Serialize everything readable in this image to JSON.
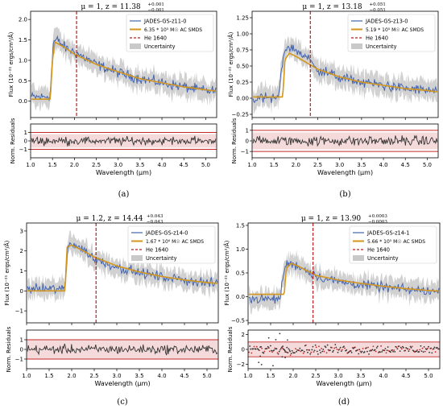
{
  "colors": {
    "data": "#4464ad",
    "model": "#d4961c",
    "he": "#b22222",
    "band": "#c9c9c9",
    "resid_band": "#f4dada",
    "resid_line": "#c62828"
  },
  "chart_data": [
    {
      "type": "line",
      "panel_label": "(a)",
      "title": "μ = 1, z = 11.38^{+0.001}_{-0.001}",
      "title_main": "μ = 1, z = 11.38",
      "title_sup": "+0.001",
      "title_sub": "−0.001",
      "xlabel": "Wavelength (μm)",
      "ylabel": "Flux (10⁻²¹ ergs/cm²/Å)",
      "ylabel_resid": "Norm. Residuals",
      "xlim": [
        1.0,
        5.25
      ],
      "ylim": [
        -0.4,
        2.2
      ],
      "resid_ylim": [
        -2,
        2
      ],
      "xticks": [
        "1.0",
        "1.5",
        "2.0",
        "2.5",
        "3.0",
        "3.5",
        "4.0",
        "4.5",
        "5.0"
      ],
      "yticks": [
        "0.0",
        "0.5",
        "1.0",
        "1.5",
        "2.0"
      ],
      "resid_yticks": [
        "−1",
        "0",
        "1"
      ],
      "he_x": 2.05,
      "legend": [
        "JADES-GS-z11-0",
        "6.35 * 10⁵ M☉ AC SMDS",
        "He 1640",
        "Uncertainty"
      ],
      "series": [
        {
          "name": "JADES-GS-z11-0",
          "x": [
            1.0,
            1.3,
            1.45,
            1.52,
            1.6,
            1.8,
            2.0,
            2.5,
            3.0,
            3.5,
            4.0,
            4.5,
            5.0,
            5.2
          ],
          "values": [
            0.1,
            0.1,
            0.15,
            1.45,
            1.5,
            1.3,
            1.2,
            0.9,
            0.7,
            0.55,
            0.45,
            0.35,
            0.25,
            0.25
          ]
        },
        {
          "name": "6.35 * 10⁵ M☉ AC SMDS",
          "x": [
            1.0,
            1.45,
            1.5,
            1.55,
            1.8,
            2.0,
            2.5,
            3.0,
            3.5,
            4.0,
            4.5,
            5.0,
            5.2
          ],
          "values": [
            0.05,
            0.05,
            1.0,
            1.45,
            1.3,
            1.15,
            0.9,
            0.72,
            0.55,
            0.45,
            0.35,
            0.28,
            0.25
          ]
        }
      ],
      "residual_style": "line",
      "resid_band": [
        -0.8,
        0.8
      ],
      "band_lines": [
        -1,
        1
      ]
    },
    {
      "type": "line",
      "panel_label": "(b)",
      "title": "μ = 1, z = 13.18^{+0.051}_{-0.051}",
      "title_main": "μ = 1, z = 13.18",
      "title_sup": "+0.051",
      "title_sub": "−0.051",
      "xlabel": "Wavelength (μm)",
      "ylabel": "Flux (10⁻²¹ ergs/cm²/Å)",
      "ylabel_resid": "Norm. Residuals",
      "xlim": [
        1.0,
        5.25
      ],
      "ylim": [
        -0.3,
        1.35
      ],
      "resid_ylim": [
        -1.6,
        1.6
      ],
      "xticks": [
        "1.0",
        "1.5",
        "2.0",
        "2.5",
        "3.0",
        "3.5",
        "4.0",
        "4.5",
        "5.0"
      ],
      "yticks": [
        "−0.25",
        "0.00",
        "0.25",
        "0.50",
        "0.75",
        "1.00",
        "1.25"
      ],
      "resid_yticks": [
        "−1",
        "0",
        "1"
      ],
      "he_x": 2.33,
      "legend": [
        "JADES-GS-z13-0",
        "5.19 * 10⁵ M☉ AC SMDS",
        "He 1640",
        "Uncertainty"
      ],
      "series": [
        {
          "name": "JADES-GS-z13-0",
          "x": [
            1.0,
            1.6,
            1.72,
            1.8,
            2.0,
            2.3,
            2.5,
            3.0,
            3.5,
            4.0,
            4.5,
            5.0,
            5.2
          ],
          "values": [
            0.0,
            0.0,
            0.7,
            0.8,
            0.75,
            0.6,
            0.45,
            0.32,
            0.25,
            0.2,
            0.15,
            0.12,
            0.1
          ]
        },
        {
          "name": "5.19 * 10⁵ M☉ AC SMDS",
          "x": [
            1.0,
            1.7,
            1.75,
            1.85,
            2.0,
            2.5,
            3.0,
            3.5,
            4.0,
            4.5,
            5.0,
            5.2
          ],
          "values": [
            0.02,
            0.02,
            0.6,
            0.7,
            0.65,
            0.45,
            0.33,
            0.25,
            0.2,
            0.15,
            0.12,
            0.1
          ]
        }
      ],
      "residual_style": "line",
      "resid_band": [
        -0.8,
        0.8
      ],
      "band_lines": [
        -1,
        1
      ]
    },
    {
      "type": "line",
      "panel_label": "(c)",
      "title": "μ = 1.2, z = 14.44^{+0.043}_{-0.043}",
      "title_main": "μ = 1.2, z = 14.44",
      "title_sup": "+0.043",
      "title_sub": "−0.043",
      "xlabel": "Wavelength (μm)",
      "ylabel": "Flux (10⁻²¹ ergs/cm²/Å)",
      "ylabel_resid": "Norm. Residuals",
      "xlim": [
        1.0,
        5.25
      ],
      "ylim": [
        -1.6,
        3.4
      ],
      "resid_ylim": [
        -2,
        2
      ],
      "xticks": [
        "1.0",
        "1.5",
        "2.0",
        "2.5",
        "3.0",
        "3.5",
        "4.0",
        "4.5",
        "5.0"
      ],
      "yticks": [
        "−1",
        "0",
        "1",
        "2",
        "3"
      ],
      "resid_yticks": [
        "−1",
        "0",
        "1"
      ],
      "he_x": 2.54,
      "legend": [
        "JADES-GS-z14-0",
        "1.67 * 10⁶ M☉ AC SMDS",
        "He 1640",
        "Uncertainty"
      ],
      "series": [
        {
          "name": "JADES-GS-z14-0",
          "x": [
            1.0,
            1.5,
            1.85,
            1.92,
            2.0,
            2.3,
            2.5,
            3.0,
            3.5,
            4.0,
            4.5,
            5.0,
            5.2
          ],
          "values": [
            0.1,
            0.1,
            0.1,
            2.3,
            2.4,
            2.0,
            1.6,
            1.2,
            0.9,
            0.7,
            0.55,
            0.4,
            0.35
          ]
        },
        {
          "name": "1.67 * 10⁶ M☉ AC SMDS",
          "x": [
            1.0,
            1.85,
            1.9,
            2.0,
            2.3,
            2.5,
            3.0,
            3.5,
            4.0,
            4.5,
            5.0,
            5.2
          ],
          "values": [
            0.0,
            0.0,
            2.2,
            2.3,
            1.95,
            1.7,
            1.25,
            0.95,
            0.72,
            0.55,
            0.42,
            0.38
          ]
        }
      ],
      "residual_style": "line",
      "resid_band": [
        -1,
        1
      ],
      "band_lines": [
        -1,
        1
      ]
    },
    {
      "type": "line",
      "panel_label": "(d)",
      "title": "μ = 1, z = 13.90^{+0.0003}_{-0.0003}",
      "title_main": "μ = 1, z = 13.90",
      "title_sup": "+0.0003",
      "title_sub": "−0.0003",
      "xlabel": "Wavelength (μm)",
      "ylabel": "Flux (10⁻²¹ ergs/cm²/Å)",
      "ylabel_resid": "Norm. Residuals",
      "xlim": [
        1.0,
        5.25
      ],
      "ylim": [
        -0.55,
        1.55
      ],
      "resid_ylim": [
        -2.6,
        2.6
      ],
      "xticks": [
        "1.0",
        "1.5",
        "2.0",
        "2.5",
        "3.0",
        "3.5",
        "4.0",
        "4.5",
        "5.0"
      ],
      "yticks": [
        "−0.5",
        "0.0",
        "0.5",
        "1.0",
        "1.5"
      ],
      "resid_yticks": [
        "−2",
        "0",
        "2"
      ],
      "he_x": 2.44,
      "legend": [
        "JADES-GS-z14-1",
        "5.66 * 10⁵ M☉ AC SMDS",
        "He 1640",
        "Uncertainty"
      ],
      "series": [
        {
          "name": "JADES-GS-z14-1",
          "x": [
            1.0,
            1.7,
            1.82,
            1.9,
            2.1,
            2.4,
            2.6,
            3.0,
            3.5,
            4.0,
            4.5,
            5.0,
            5.2
          ],
          "values": [
            -0.05,
            -0.05,
            0.65,
            0.7,
            0.65,
            0.5,
            0.4,
            0.32,
            0.25,
            0.2,
            0.15,
            0.12,
            0.1
          ]
        },
        {
          "name": "5.66 * 10⁵ M☉ AC SMDS",
          "x": [
            1.0,
            1.8,
            1.85,
            1.95,
            2.1,
            2.5,
            3.0,
            3.5,
            4.0,
            4.5,
            5.0,
            5.2
          ],
          "values": [
            0.05,
            0.05,
            0.6,
            0.7,
            0.65,
            0.45,
            0.35,
            0.28,
            0.22,
            0.17,
            0.13,
            0.12
          ]
        }
      ],
      "residual_style": "points",
      "resid_band": [
        -1,
        1
      ],
      "band_lines": [
        -1,
        1
      ]
    }
  ]
}
